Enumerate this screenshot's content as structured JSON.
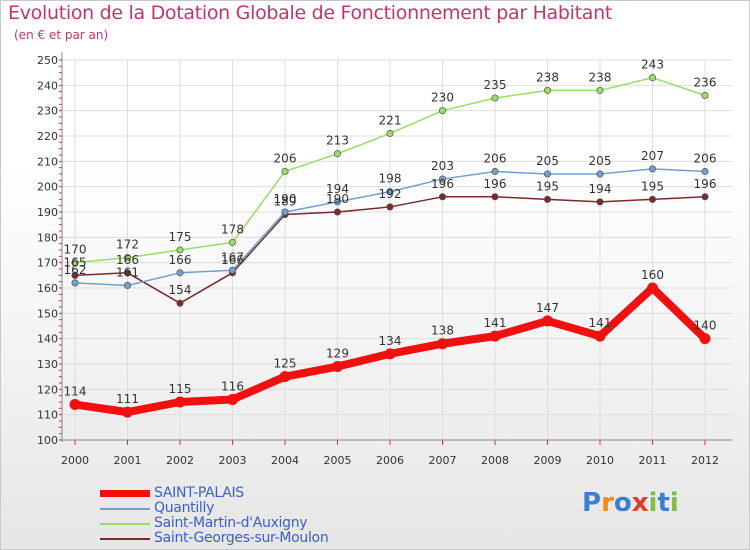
{
  "chart_data": {
    "type": "line",
    "title": "Evolution de la Dotation Globale de Fonctionnement par Habitant",
    "subtitle": "(en € et par an)",
    "x": [
      "2000",
      "2001",
      "2002",
      "2003",
      "2004",
      "2005",
      "2006",
      "2007",
      "2008",
      "2009",
      "2010",
      "2011",
      "2012"
    ],
    "ylim": [
      100,
      250
    ],
    "yticks": [
      100,
      110,
      120,
      130,
      140,
      150,
      160,
      170,
      180,
      190,
      200,
      210,
      220,
      230,
      240,
      250
    ],
    "grid": true,
    "series": [
      {
        "name": "SAINT-PALAIS",
        "color": "#f01010",
        "values": [
          114,
          111,
          115,
          116,
          125,
          129,
          134,
          138,
          141,
          147,
          141,
          160,
          140
        ]
      },
      {
        "name": "Quantilly",
        "color": "#6fa0cf",
        "values": [
          162,
          161,
          166,
          167,
          190,
          194,
          198,
          203,
          206,
          205,
          205,
          207,
          206
        ]
      },
      {
        "name": "Saint-Martin-d'Auxigny",
        "color": "#99dd66",
        "values": [
          170,
          172,
          175,
          178,
          206,
          213,
          221,
          230,
          235,
          238,
          238,
          243,
          236
        ]
      },
      {
        "name": "Saint-Georges-sur-Moulon",
        "color": "#7a2a2a",
        "values": [
          165,
          166,
          154,
          166,
          189,
          190,
          192,
          196,
          196,
          195,
          194,
          195,
          196
        ]
      }
    ]
  },
  "logo": {
    "text": "Proxiti",
    "letters": [
      "P",
      "r",
      "o",
      "x",
      "i",
      "t",
      "i"
    ],
    "colors": [
      "#3b7fd4",
      "#f28c1c",
      "#3b7fd4",
      "#e23a2a",
      "#7ac143",
      "#3b7fd4",
      "#7ac143"
    ]
  }
}
